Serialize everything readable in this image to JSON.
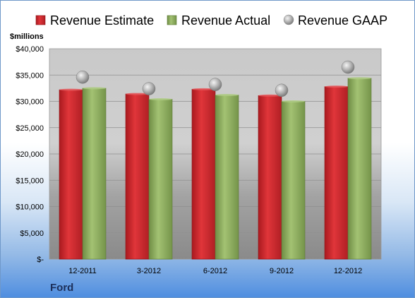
{
  "chart_data": {
    "type": "bar",
    "company": "Ford",
    "unit_label": "$millions",
    "categories": [
      "12-2011",
      "3-2012",
      "6-2012",
      "9-2012",
      "12-2012"
    ],
    "series": [
      {
        "name": "Revenue Estimate",
        "kind": "bar",
        "color": "#c8262b",
        "values": [
          32200,
          31400,
          32300,
          31100,
          32800
        ]
      },
      {
        "name": "Revenue Actual",
        "kind": "bar",
        "color": "#8cab5c",
        "values": [
          32500,
          30400,
          31200,
          30000,
          34400
        ]
      },
      {
        "name": "Revenue GAAP",
        "kind": "marker",
        "color": "#a9a9a9",
        "values": [
          34600,
          32400,
          33200,
          32100,
          36500
        ]
      }
    ],
    "y_ticks": [
      "$-",
      "$5,000",
      "$10,000",
      "$15,000",
      "$20,000",
      "$25,000",
      "$30,000",
      "$35,000",
      "$40,000"
    ],
    "ylim": [
      0,
      40000
    ],
    "grid": true,
    "legend_position": "top"
  }
}
